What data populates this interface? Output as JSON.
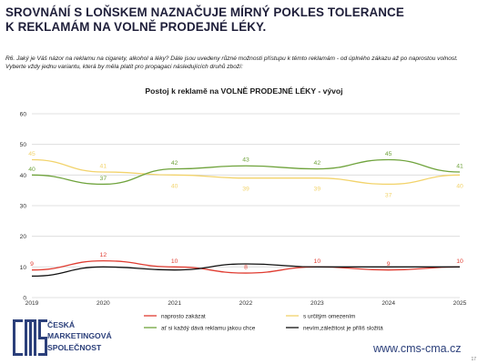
{
  "header": {
    "title_line1": "SROVNÁNÍ S LOŇSKEM NAZNAČUJE MÍRNÝ POKLES TOLERANCE",
    "title_line2": "K REKLAMÁM NA VOLNĚ PRODEJNÉ LÉKY.",
    "question_line1": "R6.  Jaký je Váš názor  na reklamu na cigarety, alkohol a léky? Dále jsou uvedeny různé možnosti přístupu k těmto reklamám - od úplného zákazu až po naprostou volnost.",
    "question_line2": "Vyberte vždy jednu variantu, která by měla platit pro propagaci následujících druhů zboží:"
  },
  "chart_data": {
    "type": "line",
    "title": "Postoj k reklamě na VOLNĚ PRODEJNÉ LÉKY - vývoj",
    "x": [
      "2019",
      "2020",
      "2021",
      "2022",
      "2023",
      "2024",
      "2025"
    ],
    "ylim": [
      0,
      60
    ],
    "yticks": [
      "0",
      "10",
      "20",
      "30",
      "40",
      "50",
      "60"
    ],
    "grid": true,
    "legend_position": "bottom",
    "series": [
      {
        "name": "naprosto zakázat",
        "color": "#e03c31",
        "values": [
          9,
          12,
          10,
          8,
          10,
          9,
          10
        ],
        "labels": [
          "9",
          "12",
          "10",
          "8",
          "10",
          "9",
          "10"
        ],
        "label_side": "above"
      },
      {
        "name": "s určitým omezením",
        "color": "#f2d36b",
        "values": [
          45,
          41,
          40,
          39,
          39,
          37,
          40
        ],
        "labels": [
          "45",
          "41",
          "40",
          "39",
          "39",
          "37",
          "40"
        ],
        "label_side": "mixed"
      },
      {
        "name": "ať si každý dává reklamu jakou chce",
        "color": "#6fa33c",
        "values": [
          40,
          37,
          42,
          43,
          42,
          45,
          41
        ],
        "labels": [
          "40",
          "37",
          "42",
          "43",
          "42",
          "45",
          "41"
        ],
        "label_side": "above"
      },
      {
        "name": "nevím,záležitost je příliš složitá",
        "color": "#111111",
        "values": [
          7,
          10,
          9,
          11,
          10,
          10,
          10
        ],
        "labels": [],
        "label_side": "none"
      }
    ]
  },
  "footer": {
    "logo_line1": "ČESKÁ",
    "logo_line2": "MARKETINGOVÁ",
    "logo_line3": "SPOLEČNOST",
    "website": "www.cms-cma.cz",
    "page_number": "17"
  }
}
